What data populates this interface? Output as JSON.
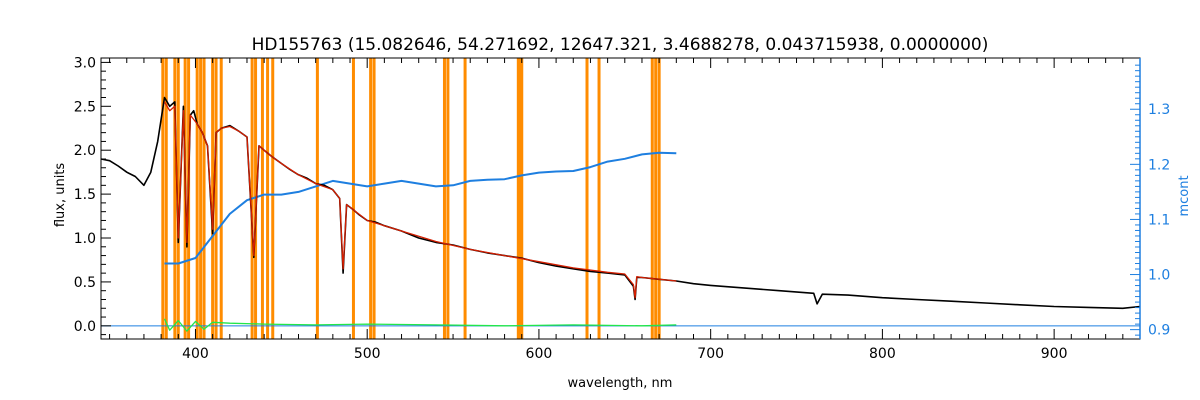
{
  "chart_data": {
    "type": "line",
    "title": "HD155763    (15.082646, 54.271692, 12647.321, 3.4688278, 0.043715938, 0.0000000)",
    "xlabel": "wavelength, nm",
    "ylabel": "flux, units",
    "y2label": "mcont",
    "xlim": [
      345,
      950
    ],
    "ylim": [
      -0.15,
      3.05
    ],
    "y2lim": [
      0.883,
      1.393
    ],
    "xticks": [
      "400",
      "500",
      "600",
      "700",
      "800",
      "900"
    ],
    "xtick_values": [
      400,
      500,
      600,
      700,
      800,
      900
    ],
    "yticks": [
      "0.0",
      "0.5",
      "1.0",
      "1.5",
      "2.0",
      "2.5",
      "3.0"
    ],
    "ytick_values": [
      0.0,
      0.5,
      1.0,
      1.5,
      2.0,
      2.5,
      3.0
    ],
    "y2ticks": [
      "0.9",
      "1.0",
      "1.1",
      "1.2",
      "1.3"
    ],
    "y2tick_values": [
      0.9,
      1.0,
      1.1,
      1.2,
      1.3
    ],
    "colors": {
      "observed": "#000000",
      "model": "#d41e00",
      "residual": "#22e64a",
      "mcont": "#1e7fe0",
      "mask": "#ff8c00",
      "zero_line": "#1e7fe0"
    },
    "masked_wavelengths": [
      381,
      383,
      388,
      390,
      394,
      396,
      401,
      403,
      405,
      410,
      412,
      415,
      433,
      435,
      439,
      442,
      445,
      471,
      492,
      502,
      504,
      545,
      547,
      557,
      588,
      589,
      590,
      628,
      635,
      666,
      668,
      670
    ],
    "series": [
      {
        "key": "observed",
        "x": [
          345,
          350,
          355,
          360,
          365,
          370,
          374,
          378,
          382,
          385,
          388,
          390,
          393,
          395,
          397,
          399,
          401,
          404,
          407,
          410,
          412,
          415,
          420,
          425,
          430,
          434,
          437,
          440,
          445,
          450,
          455,
          460,
          465,
          470,
          475,
          480,
          484,
          486,
          488,
          492,
          495,
          500,
          505,
          510,
          520,
          530,
          540,
          550,
          560,
          570,
          580,
          590,
          600,
          610,
          620,
          630,
          640,
          650,
          655,
          656,
          657,
          660,
          670,
          680,
          690,
          700,
          720,
          740,
          760,
          762,
          765,
          780,
          800,
          820,
          840,
          860,
          880,
          900,
          920,
          940,
          950
        ],
        "y": [
          1.9,
          1.88,
          1.82,
          1.75,
          1.7,
          1.6,
          1.75,
          2.1,
          2.6,
          2.5,
          2.55,
          0.95,
          2.5,
          0.9,
          2.4,
          2.45,
          2.3,
          2.2,
          2.05,
          1.05,
          2.2,
          2.25,
          2.28,
          2.22,
          2.15,
          0.78,
          2.05,
          2.0,
          1.92,
          1.85,
          1.78,
          1.72,
          1.68,
          1.62,
          1.6,
          1.55,
          1.45,
          0.6,
          1.38,
          1.32,
          1.27,
          1.2,
          1.18,
          1.14,
          1.08,
          1.0,
          0.95,
          0.92,
          0.87,
          0.83,
          0.8,
          0.77,
          0.72,
          0.68,
          0.65,
          0.62,
          0.6,
          0.58,
          0.45,
          0.3,
          0.55,
          0.55,
          0.53,
          0.51,
          0.48,
          0.46,
          0.43,
          0.4,
          0.37,
          0.25,
          0.36,
          0.35,
          0.32,
          0.3,
          0.28,
          0.26,
          0.24,
          0.22,
          0.21,
          0.2,
          0.22
        ]
      },
      {
        "key": "model",
        "x": [
          382,
          385,
          388,
          390,
          393,
          395,
          397,
          401,
          404,
          407,
          410,
          412,
          415,
          420,
          425,
          430,
          434,
          437,
          440,
          445,
          450,
          460,
          470,
          480,
          484,
          486,
          488,
          492,
          500,
          510,
          520,
          540,
          560,
          580,
          600,
          620,
          640,
          650,
          655,
          656,
          657,
          660,
          680
        ],
        "y": [
          2.55,
          2.45,
          2.5,
          1.0,
          2.45,
          0.95,
          2.4,
          2.3,
          2.2,
          2.05,
          1.1,
          2.2,
          2.25,
          2.27,
          2.22,
          2.15,
          0.8,
          2.05,
          2.0,
          1.92,
          1.85,
          1.72,
          1.62,
          1.55,
          1.45,
          0.65,
          1.38,
          1.32,
          1.2,
          1.14,
          1.08,
          0.96,
          0.87,
          0.8,
          0.73,
          0.66,
          0.61,
          0.59,
          0.47,
          0.32,
          0.56,
          0.55,
          0.51
        ]
      },
      {
        "key": "residual",
        "x": [
          382,
          385,
          390,
          395,
          400,
          405,
          410,
          420,
          440,
          470,
          500,
          540,
          580,
          620,
          660,
          680
        ],
        "y": [
          0.08,
          -0.05,
          0.06,
          -0.06,
          0.05,
          -0.04,
          0.04,
          0.03,
          0.02,
          0.01,
          0.02,
          0.01,
          0.0,
          0.01,
          0.0,
          0.01
        ]
      },
      {
        "key": "mcont",
        "axis": "right",
        "x": [
          382,
          390,
          400,
          410,
          420,
          430,
          440,
          450,
          460,
          470,
          480,
          490,
          500,
          510,
          520,
          530,
          540,
          550,
          560,
          570,
          580,
          590,
          600,
          610,
          620,
          630,
          640,
          650,
          660,
          670,
          680
        ],
        "y": [
          1.02,
          1.02,
          1.03,
          1.07,
          1.11,
          1.135,
          1.145,
          1.145,
          1.15,
          1.16,
          1.17,
          1.165,
          1.16,
          1.165,
          1.17,
          1.165,
          1.16,
          1.162,
          1.17,
          1.172,
          1.173,
          1.18,
          1.185,
          1.187,
          1.188,
          1.195,
          1.205,
          1.21,
          1.218,
          1.221,
          1.22
        ]
      }
    ]
  }
}
